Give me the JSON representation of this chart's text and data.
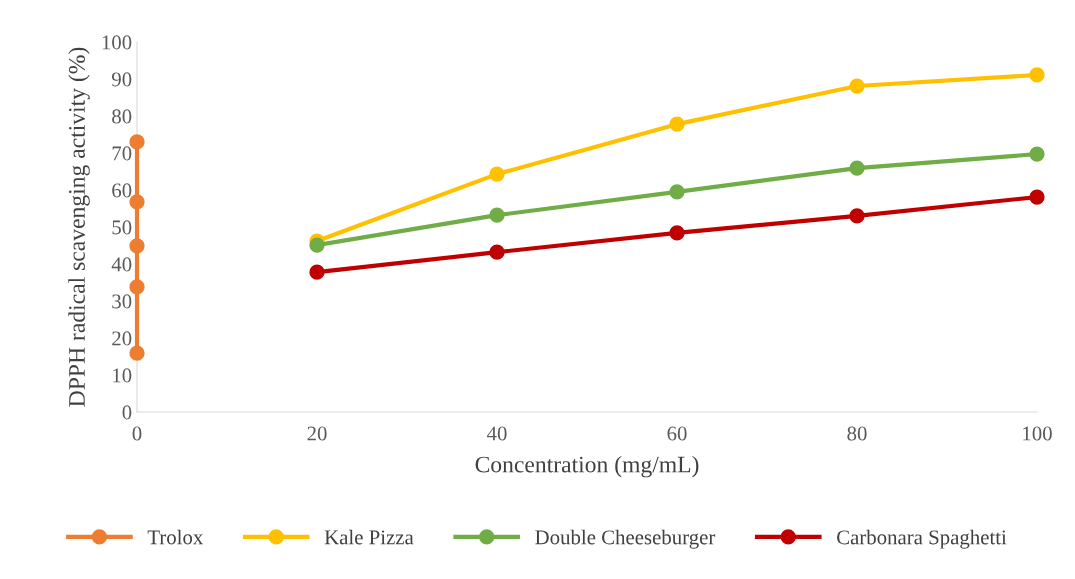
{
  "chart_data": {
    "type": "line",
    "xlabel": "Concentration (mg/mL)",
    "ylabel": "DPPH radical scavenging activity (%)",
    "xlim": [
      0,
      100
    ],
    "xticks": [
      0,
      20,
      40,
      60,
      80,
      100
    ],
    "ylim": [
      0,
      100
    ],
    "yticks": [
      0,
      10,
      20,
      30,
      40,
      50,
      60,
      70,
      80,
      90,
      100
    ],
    "grid": false,
    "legend": "bottom",
    "marker": "circle",
    "line_style": "solid",
    "series": [
      {
        "name": "Trolox",
        "color": "#ed7d31",
        "x": [
          0,
          0,
          0,
          0,
          0
        ],
        "values": [
          73.0,
          56.8,
          44.9,
          33.8,
          15.9
        ]
      },
      {
        "name": "Kale Pizza",
        "color": "#ffc000",
        "x": [
          20,
          40,
          60,
          80,
          100
        ],
        "values": [
          46.2,
          64.3,
          77.8,
          88.1,
          91.1
        ]
      },
      {
        "name": "Double Cheeseburger",
        "color": "#70ad47",
        "x": [
          20,
          40,
          60,
          80,
          100
        ],
        "values": [
          45.1,
          53.2,
          59.5,
          65.9,
          69.7
        ]
      },
      {
        "name": "Carbonara Spaghetti",
        "color": "#c00000",
        "x": [
          20,
          40,
          60,
          80,
          100
        ],
        "values": [
          37.8,
          43.2,
          48.4,
          53.0,
          58.1
        ]
      }
    ]
  }
}
